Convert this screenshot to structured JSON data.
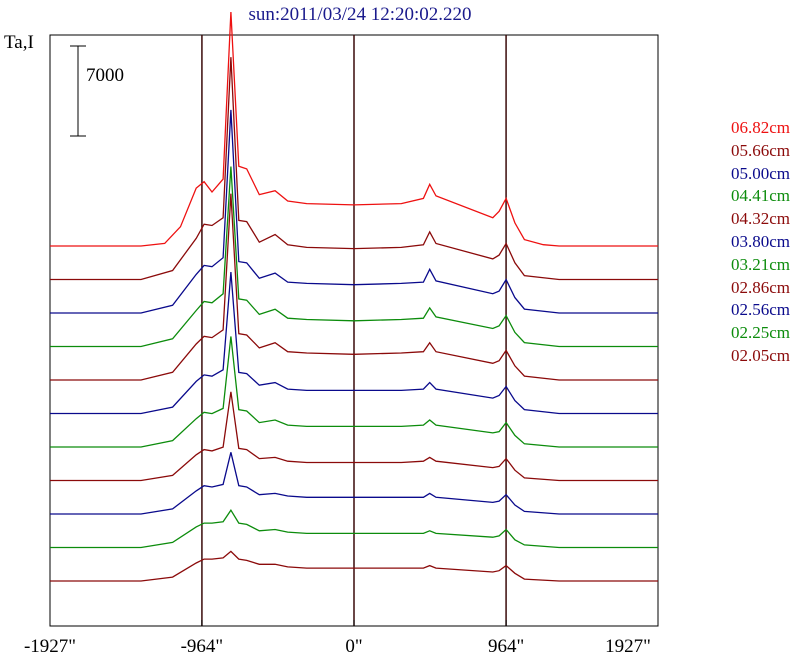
{
  "chart_data": {
    "type": "line",
    "title": "sun:2011/03/24 12:20:02.220",
    "ylabel": "Ta,I",
    "scale_bar_label": "7000",
    "x_ticks": [
      "-1927\"",
      "-964\"",
      "0\"",
      "964\"",
      "1927\""
    ],
    "x_tick_values": [
      -1927,
      -964,
      0,
      964,
      1927
    ],
    "vertical_lines_at": [
      -964,
      0,
      964
    ],
    "xlim": [
      -1927,
      1927
    ],
    "series": [
      {
        "name": "06.82cm",
        "color": "#ee1111",
        "values": [
          [
            -1927,
            0
          ],
          [
            -1350,
            0
          ],
          [
            -1200,
            200
          ],
          [
            -1100,
            1500
          ],
          [
            -1000,
            4500
          ],
          [
            -950,
            5000
          ],
          [
            -900,
            4200
          ],
          [
            -830,
            5200
          ],
          [
            -780,
            18200
          ],
          [
            -730,
            6200
          ],
          [
            -680,
            6000
          ],
          [
            -600,
            4000
          ],
          [
            -500,
            4300
          ],
          [
            -420,
            3500
          ],
          [
            -300,
            3300
          ],
          [
            0,
            3200
          ],
          [
            300,
            3300
          ],
          [
            440,
            3700
          ],
          [
            480,
            4800
          ],
          [
            520,
            3900
          ],
          [
            880,
            2200
          ],
          [
            920,
            2700
          ],
          [
            964,
            3700
          ],
          [
            1020,
            1800
          ],
          [
            1080,
            500
          ],
          [
            1200,
            100
          ],
          [
            1300,
            0
          ],
          [
            1927,
            0
          ]
        ]
      },
      {
        "name": "05.66cm",
        "color": "#8b0a0a",
        "values": [
          [
            -1927,
            0
          ],
          [
            -1350,
            0
          ],
          [
            -1150,
            700
          ],
          [
            -1000,
            3200
          ],
          [
            -950,
            4300
          ],
          [
            -900,
            4200
          ],
          [
            -830,
            4800
          ],
          [
            -780,
            17300
          ],
          [
            -730,
            4600
          ],
          [
            -680,
            4500
          ],
          [
            -600,
            2900
          ],
          [
            -500,
            3500
          ],
          [
            -420,
            2700
          ],
          [
            -300,
            2500
          ],
          [
            0,
            2400
          ],
          [
            300,
            2500
          ],
          [
            440,
            2700
          ],
          [
            480,
            3700
          ],
          [
            520,
            2800
          ],
          [
            880,
            1600
          ],
          [
            920,
            1900
          ],
          [
            964,
            2800
          ],
          [
            1020,
            1300
          ],
          [
            1080,
            300
          ],
          [
            1300,
            0
          ],
          [
            1927,
            0
          ]
        ]
      },
      {
        "name": "05.00cm",
        "color": "#0a0a8c",
        "values": [
          [
            -1927,
            0
          ],
          [
            -1350,
            0
          ],
          [
            -1150,
            600
          ],
          [
            -1000,
            3000
          ],
          [
            -950,
            3700
          ],
          [
            -900,
            3600
          ],
          [
            -830,
            4300
          ],
          [
            -780,
            15800
          ],
          [
            -730,
            4000
          ],
          [
            -680,
            3900
          ],
          [
            -600,
            2700
          ],
          [
            -500,
            3100
          ],
          [
            -420,
            2400
          ],
          [
            -300,
            2300
          ],
          [
            0,
            2200
          ],
          [
            300,
            2300
          ],
          [
            440,
            2400
          ],
          [
            480,
            3400
          ],
          [
            520,
            2500
          ],
          [
            880,
            1500
          ],
          [
            920,
            1700
          ],
          [
            964,
            2600
          ],
          [
            1020,
            1200
          ],
          [
            1080,
            300
          ],
          [
            1300,
            0
          ],
          [
            1927,
            0
          ]
        ]
      },
      {
        "name": "04.41cm",
        "color": "#0c8c0c",
        "values": [
          [
            -1927,
            0
          ],
          [
            -1350,
            0
          ],
          [
            -1150,
            600
          ],
          [
            -1000,
            2800
          ],
          [
            -950,
            3500
          ],
          [
            -900,
            3400
          ],
          [
            -830,
            4100
          ],
          [
            -780,
            14000
          ],
          [
            -730,
            3700
          ],
          [
            -680,
            3600
          ],
          [
            -600,
            2500
          ],
          [
            -500,
            2900
          ],
          [
            -420,
            2200
          ],
          [
            -300,
            2100
          ],
          [
            0,
            2000
          ],
          [
            300,
            2100
          ],
          [
            440,
            2200
          ],
          [
            480,
            3000
          ],
          [
            520,
            2300
          ],
          [
            880,
            1400
          ],
          [
            920,
            1600
          ],
          [
            964,
            2400
          ],
          [
            1020,
            1100
          ],
          [
            1080,
            300
          ],
          [
            1300,
            0
          ],
          [
            1927,
            0
          ]
        ]
      },
      {
        "name": "04.32cm",
        "color": "#8b0a0a",
        "values": [
          [
            -1927,
            0
          ],
          [
            -1350,
            0
          ],
          [
            -1150,
            600
          ],
          [
            -1000,
            2800
          ],
          [
            -950,
            3400
          ],
          [
            -900,
            3300
          ],
          [
            -830,
            3900
          ],
          [
            -780,
            14500
          ],
          [
            -730,
            3600
          ],
          [
            -680,
            3500
          ],
          [
            -600,
            2500
          ],
          [
            -500,
            2900
          ],
          [
            -420,
            2200
          ],
          [
            -300,
            2100
          ],
          [
            0,
            2000
          ],
          [
            300,
            2100
          ],
          [
            440,
            2200
          ],
          [
            480,
            2900
          ],
          [
            520,
            2200
          ],
          [
            880,
            1300
          ],
          [
            920,
            1500
          ],
          [
            964,
            2300
          ],
          [
            1020,
            1100
          ],
          [
            1080,
            300
          ],
          [
            1300,
            0
          ],
          [
            1927,
            0
          ]
        ]
      },
      {
        "name": "03.80cm",
        "color": "#0a0a8c",
        "values": [
          [
            -1927,
            0
          ],
          [
            -1350,
            0
          ],
          [
            -1150,
            500
          ],
          [
            -1000,
            2500
          ],
          [
            -950,
            3000
          ],
          [
            -900,
            2900
          ],
          [
            -830,
            3400
          ],
          [
            -780,
            11000
          ],
          [
            -730,
            3200
          ],
          [
            -680,
            3100
          ],
          [
            -600,
            2200
          ],
          [
            -500,
            2400
          ],
          [
            -420,
            1900
          ],
          [
            -300,
            1800
          ],
          [
            0,
            1800
          ],
          [
            300,
            1800
          ],
          [
            440,
            1900
          ],
          [
            480,
            2400
          ],
          [
            520,
            1900
          ],
          [
            880,
            1200
          ],
          [
            920,
            1400
          ],
          [
            964,
            2100
          ],
          [
            1020,
            1000
          ],
          [
            1080,
            300
          ],
          [
            1300,
            0
          ],
          [
            1927,
            0
          ]
        ]
      },
      {
        "name": "03.21cm",
        "color": "#0c8c0c",
        "values": [
          [
            -1927,
            0
          ],
          [
            -1350,
            0
          ],
          [
            -1150,
            500
          ],
          [
            -1000,
            2200
          ],
          [
            -950,
            2700
          ],
          [
            -900,
            2600
          ],
          [
            -830,
            3000
          ],
          [
            -780,
            8600
          ],
          [
            -730,
            2900
          ],
          [
            -680,
            2800
          ],
          [
            -600,
            1900
          ],
          [
            -500,
            2100
          ],
          [
            -420,
            1700
          ],
          [
            -300,
            1600
          ],
          [
            0,
            1600
          ],
          [
            300,
            1600
          ],
          [
            440,
            1700
          ],
          [
            480,
            2100
          ],
          [
            520,
            1700
          ],
          [
            880,
            1100
          ],
          [
            920,
            1200
          ],
          [
            964,
            1900
          ],
          [
            1020,
            900
          ],
          [
            1080,
            250
          ],
          [
            1300,
            0
          ],
          [
            1927,
            0
          ]
        ]
      },
      {
        "name": "02.86cm",
        "color": "#8b0a0a",
        "values": [
          [
            -1927,
            0
          ],
          [
            -1350,
            0
          ],
          [
            -1150,
            400
          ],
          [
            -1000,
            2000
          ],
          [
            -950,
            2400
          ],
          [
            -900,
            2300
          ],
          [
            -830,
            2600
          ],
          [
            -780,
            6900
          ],
          [
            -730,
            2500
          ],
          [
            -680,
            2400
          ],
          [
            -600,
            1700
          ],
          [
            -500,
            1800
          ],
          [
            -420,
            1500
          ],
          [
            -300,
            1400
          ],
          [
            0,
            1400
          ],
          [
            300,
            1400
          ],
          [
            440,
            1500
          ],
          [
            480,
            1800
          ],
          [
            520,
            1500
          ],
          [
            880,
            1000
          ],
          [
            920,
            1100
          ],
          [
            964,
            1700
          ],
          [
            1020,
            800
          ],
          [
            1080,
            200
          ],
          [
            1300,
            0
          ],
          [
            1927,
            0
          ]
        ]
      },
      {
        "name": "02.56cm",
        "color": "#0a0a8c",
        "values": [
          [
            -1927,
            0
          ],
          [
            -1350,
            0
          ],
          [
            -1150,
            400
          ],
          [
            -1000,
            1800
          ],
          [
            -950,
            2200
          ],
          [
            -900,
            2100
          ],
          [
            -830,
            2300
          ],
          [
            -780,
            4800
          ],
          [
            -730,
            2200
          ],
          [
            -680,
            2100
          ],
          [
            -600,
            1500
          ],
          [
            -500,
            1600
          ],
          [
            -420,
            1400
          ],
          [
            -300,
            1300
          ],
          [
            0,
            1300
          ],
          [
            300,
            1300
          ],
          [
            440,
            1300
          ],
          [
            480,
            1600
          ],
          [
            520,
            1300
          ],
          [
            880,
            900
          ],
          [
            920,
            1000
          ],
          [
            964,
            1500
          ],
          [
            1020,
            700
          ],
          [
            1080,
            200
          ],
          [
            1300,
            0
          ],
          [
            1927,
            0
          ]
        ]
      },
      {
        "name": "02.25cm",
        "color": "#0c8c0c",
        "values": [
          [
            -1927,
            0
          ],
          [
            -1350,
            0
          ],
          [
            -1150,
            400
          ],
          [
            -1000,
            1600
          ],
          [
            -950,
            1900
          ],
          [
            -900,
            1900
          ],
          [
            -830,
            2000
          ],
          [
            -780,
            2900
          ],
          [
            -730,
            1900
          ],
          [
            -680,
            1800
          ],
          [
            -600,
            1300
          ],
          [
            -500,
            1400
          ],
          [
            -420,
            1200
          ],
          [
            -300,
            1100
          ],
          [
            0,
            1100
          ],
          [
            300,
            1100
          ],
          [
            440,
            1100
          ],
          [
            480,
            1300
          ],
          [
            520,
            1100
          ],
          [
            880,
            800
          ],
          [
            920,
            900
          ],
          [
            964,
            1400
          ],
          [
            1020,
            600
          ],
          [
            1080,
            200
          ],
          [
            1300,
            0
          ],
          [
            1927,
            0
          ]
        ]
      },
      {
        "name": "02.05cm",
        "color": "#8b0a0a",
        "values": [
          [
            -1927,
            0
          ],
          [
            -1350,
            0
          ],
          [
            -1150,
            300
          ],
          [
            -1000,
            1400
          ],
          [
            -950,
            1700
          ],
          [
            -900,
            1700
          ],
          [
            -830,
            1800
          ],
          [
            -780,
            2300
          ],
          [
            -730,
            1700
          ],
          [
            -680,
            1600
          ],
          [
            -600,
            1300
          ],
          [
            -500,
            1300
          ],
          [
            -420,
            1100
          ],
          [
            -300,
            1000
          ],
          [
            0,
            1000
          ],
          [
            300,
            1000
          ],
          [
            440,
            1000
          ],
          [
            480,
            1200
          ],
          [
            520,
            1000
          ],
          [
            880,
            700
          ],
          [
            920,
            800
          ],
          [
            964,
            1200
          ],
          [
            1020,
            600
          ],
          [
            1080,
            150
          ],
          [
            1300,
            0
          ],
          [
            1927,
            0
          ]
        ]
      }
    ],
    "legend_placement": "right",
    "grid": false
  }
}
